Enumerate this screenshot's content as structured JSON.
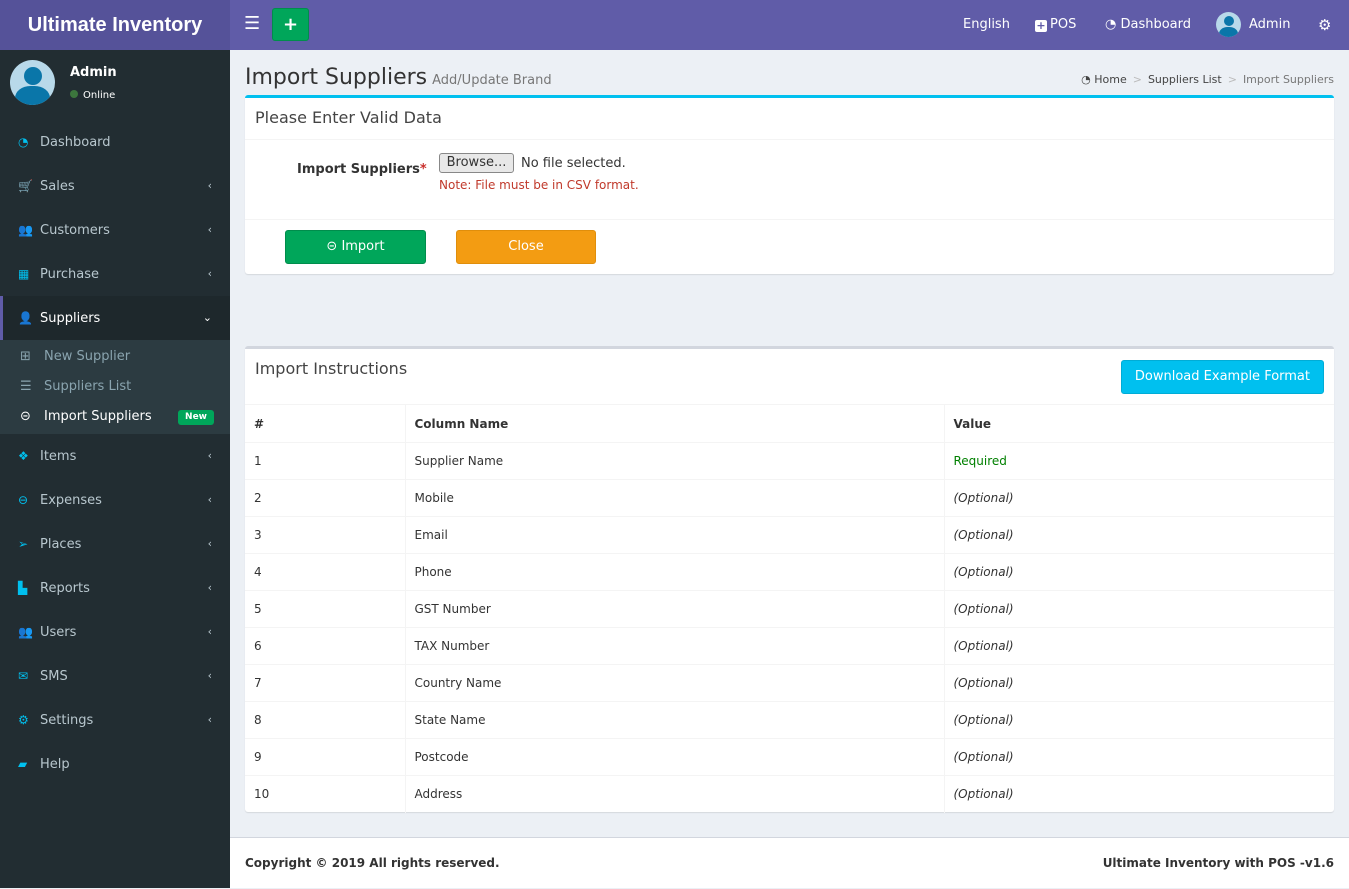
{
  "app": {
    "title": "Ultimate Inventory"
  },
  "topbar": {
    "language": "English",
    "pos": "POS",
    "dashboard": "Dashboard",
    "user": "Admin"
  },
  "sidebar": {
    "user": {
      "name": "Admin",
      "status": "Online"
    },
    "items": [
      {
        "label": "Dashboard",
        "icon": "dashboard-icon",
        "glyph": "◔",
        "chev": ""
      },
      {
        "label": "Sales",
        "icon": "cart-icon",
        "glyph": "🛒",
        "chev": "‹"
      },
      {
        "label": "Customers",
        "icon": "users-icon",
        "glyph": "👥",
        "chev": "‹"
      },
      {
        "label": "Purchase",
        "icon": "grid-icon",
        "glyph": "▦",
        "chev": "‹"
      },
      {
        "label": "Suppliers",
        "icon": "user-plus-icon",
        "glyph": "👤",
        "chev": "⌄",
        "active": true
      }
    ],
    "sub": [
      {
        "label": "New Supplier",
        "icon": "plus-square-icon",
        "glyph": "⊞"
      },
      {
        "label": "Suppliers List",
        "icon": "list-icon",
        "glyph": "☰"
      },
      {
        "label": "Import Suppliers",
        "icon": "arrow-circle-left-icon",
        "glyph": "⊝",
        "badge": "New",
        "current": true
      }
    ],
    "items2": [
      {
        "label": "Items",
        "icon": "cubes-icon",
        "glyph": "❖",
        "chev": "‹"
      },
      {
        "label": "Expenses",
        "icon": "minus-circle-icon",
        "glyph": "⊖",
        "chev": "‹"
      },
      {
        "label": "Places",
        "icon": "paper-plane-icon",
        "glyph": "➢",
        "chev": "‹"
      },
      {
        "label": "Reports",
        "icon": "bar-chart-icon",
        "glyph": "▙",
        "chev": "‹"
      },
      {
        "label": "Users",
        "icon": "users-icon",
        "glyph": "👥",
        "chev": "‹"
      },
      {
        "label": "SMS",
        "icon": "envelope-icon",
        "glyph": "✉",
        "chev": "‹"
      },
      {
        "label": "Settings",
        "icon": "cogs-icon",
        "glyph": "⚙",
        "chev": "‹"
      },
      {
        "label": "Help",
        "icon": "book-icon",
        "glyph": "▰",
        "chev": ""
      }
    ]
  },
  "page": {
    "title": "Import Suppliers",
    "subtitle": "Add/Update Brand",
    "breadcrumb": [
      "Home",
      "Suppliers List",
      "Import Suppliers"
    ]
  },
  "form": {
    "header": "Please Enter Valid Data",
    "label": "Import Suppliers",
    "required_mark": "*",
    "browse": "Browse...",
    "no_file": "No file selected.",
    "note": "Note: File must be in CSV format.",
    "import": "Import",
    "close": "Close"
  },
  "instructions": {
    "header": "Import Instructions",
    "download": "Download Example Format",
    "columns": [
      "#",
      "Column Name",
      "Value"
    ],
    "rows": [
      [
        "1",
        "Supplier Name",
        "Required"
      ],
      [
        "2",
        "Mobile",
        "(Optional)"
      ],
      [
        "3",
        "Email",
        "(Optional)"
      ],
      [
        "4",
        "Phone",
        "(Optional)"
      ],
      [
        "5",
        "GST Number",
        "(Optional)"
      ],
      [
        "6",
        "TAX Number",
        "(Optional)"
      ],
      [
        "7",
        "Country Name",
        "(Optional)"
      ],
      [
        "8",
        "State Name",
        "(Optional)"
      ],
      [
        "9",
        "Postcode",
        "(Optional)"
      ],
      [
        "10",
        "Address",
        "(Optional)"
      ]
    ]
  },
  "footer": {
    "copyright": "Copyright © 2019 All rights reserved.",
    "version": "Ultimate Inventory with POS -v1.6"
  },
  "colors": {
    "header": "#605ca8",
    "sidebar": "#222d32",
    "primary_box": "#00c0ef",
    "success": "#00a65a",
    "warning": "#f39c12"
  }
}
